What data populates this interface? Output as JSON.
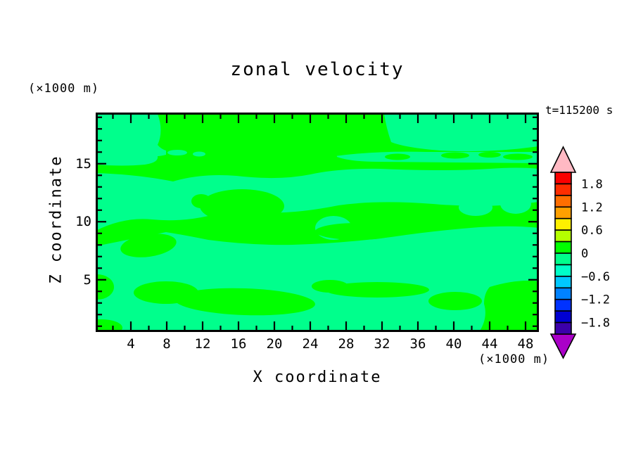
{
  "title": "zonal velocity",
  "time_label": "t=115200 s",
  "axes": {
    "x": {
      "label": "X coordinate",
      "unit": "(×1000 m)",
      "min": 0,
      "max": 49.4,
      "minor_step": 2,
      "major_step": 4,
      "major_ticks": [
        "4",
        "8",
        "12",
        "16",
        "20",
        "24",
        "28",
        "32",
        "36",
        "40",
        "44",
        "48"
      ],
      "major_tick_values": [
        4,
        8,
        12,
        16,
        20,
        24,
        28,
        32,
        36,
        40,
        44,
        48
      ]
    },
    "y": {
      "label": "Z coordinate",
      "unit": "(×1000 m)",
      "min": 0.5,
      "max": 19.4,
      "minor_step": 1,
      "major_ticks": [
        "5",
        "10",
        "15"
      ],
      "major_tick_values": [
        5,
        10,
        15
      ]
    }
  },
  "colorbar": {
    "labels": [
      "1.8",
      "1.2",
      "0.6",
      "0",
      "−0.6",
      "−1.2",
      "−1.8"
    ],
    "level_max": 2.1,
    "level_min": -2.1,
    "level_step": 0.3,
    "segment_colors_top_to_bottom": [
      "#fa0000",
      "#ff2d00",
      "#ff6e00",
      "#ffa000",
      "#fff000",
      "#b4ff00",
      "#00ff00",
      "#00ff8c",
      "#00ffc8",
      "#00c8ff",
      "#0082ff",
      "#0032ff",
      "#0000d2",
      "#3c00aa"
    ],
    "over_arrow_color": "#ffb9c3",
    "under_arrow_color": "#aa00c8"
  },
  "field": {
    "positive_band_color": "#00ff00",
    "negative_band_color": "#00ff8c"
  },
  "chart_data": {
    "type": "heatmap",
    "subtype": "filled-contour",
    "title": "zonal velocity",
    "annotation": "t=115200 s",
    "xlabel": "X coordinate (×1000 m)",
    "ylabel": "Z coordinate (×1000 m)",
    "x_range": [
      0,
      49.4
    ],
    "y_range": [
      0.5,
      19.4
    ],
    "contour_interval": 0.3,
    "colorbar_levels": [
      -2.1,
      -1.8,
      -1.5,
      -1.2,
      -0.9,
      -0.6,
      -0.3,
      0,
      0.3,
      0.6,
      0.9,
      1.2,
      1.5,
      1.8,
      2.1
    ],
    "value_range_displayed": [
      -0.3,
      0.3
    ],
    "bands_visible": [
      {
        "range": "0 to 0.3",
        "color": "#00ff00",
        "coverage": "background over most of domain"
      },
      {
        "range": "-0.3 to 0",
        "color": "#00ff8c",
        "coverage": "elongated wavy horizontal patches throughout; large patches in top-left and top-right corners"
      }
    ],
    "grid": false,
    "legend_position": "right colorbar with over/under arrows"
  }
}
